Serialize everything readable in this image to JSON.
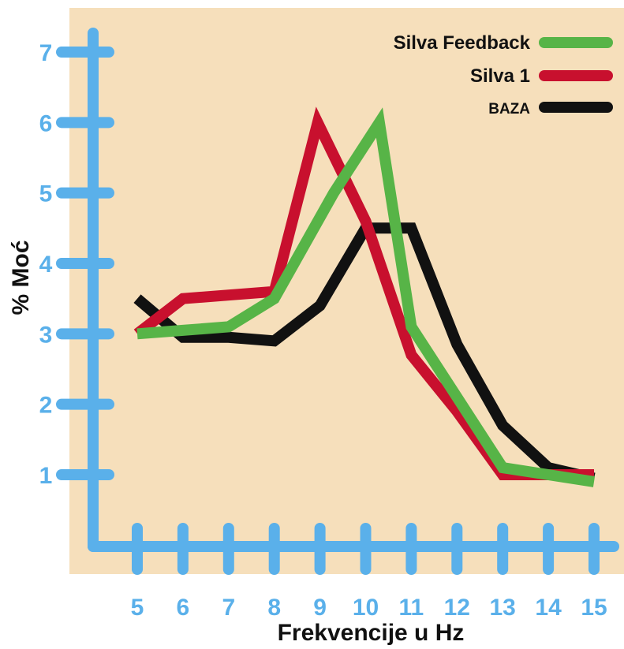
{
  "chart_data": {
    "type": "line",
    "xlabel": "Frekvencije u Hz",
    "ylabel": "% Moć",
    "x": [
      5,
      6,
      7,
      8,
      9,
      10,
      11,
      12,
      13,
      14,
      15
    ],
    "xlim": [
      4,
      15.2
    ],
    "ylim": [
      0,
      7.3
    ],
    "x_ticks": [
      "5",
      "6",
      "7",
      "8",
      "9",
      "10",
      "11",
      "12",
      "13",
      "14",
      "15"
    ],
    "y_ticks": [
      "1",
      "2",
      "3",
      "4",
      "5",
      "6",
      "7"
    ],
    "legend_position": "top-right",
    "grid": false,
    "series": [
      {
        "name": "Silva Feedback",
        "color": "#57b447",
        "points": [
          [
            5,
            3.0
          ],
          [
            6,
            3.05
          ],
          [
            7,
            3.1
          ],
          [
            8,
            3.5
          ],
          [
            9.3,
            5.0
          ],
          [
            10.3,
            6.0
          ],
          [
            11,
            3.1
          ],
          [
            12,
            2.1
          ],
          [
            13,
            1.1
          ],
          [
            14,
            1.0
          ],
          [
            15,
            0.9
          ]
        ]
      },
      {
        "name": "Silva 1",
        "color": "#c8102e",
        "points": [
          [
            5,
            3.0
          ],
          [
            6,
            3.5
          ],
          [
            7,
            3.55
          ],
          [
            8,
            3.6
          ],
          [
            8.95,
            6.0
          ],
          [
            10,
            4.6
          ],
          [
            11,
            2.7
          ],
          [
            12,
            1.9
          ],
          [
            13,
            1.0
          ],
          [
            14,
            1.0
          ],
          [
            15,
            1.0
          ]
        ]
      },
      {
        "name": "BAZA",
        "color": "#111111",
        "points": [
          [
            5,
            3.5
          ],
          [
            6,
            2.95
          ],
          [
            7,
            2.95
          ],
          [
            8,
            2.9
          ],
          [
            9,
            3.4
          ],
          [
            10,
            4.5
          ],
          [
            11,
            4.5
          ],
          [
            12,
            2.85
          ],
          [
            13,
            1.7
          ],
          [
            14,
            1.1
          ],
          [
            15,
            0.95
          ]
        ]
      }
    ]
  },
  "colors": {
    "background": "#f6dfbb",
    "axis": "#5ab0ea",
    "tick_label": "#5ab0ea"
  }
}
